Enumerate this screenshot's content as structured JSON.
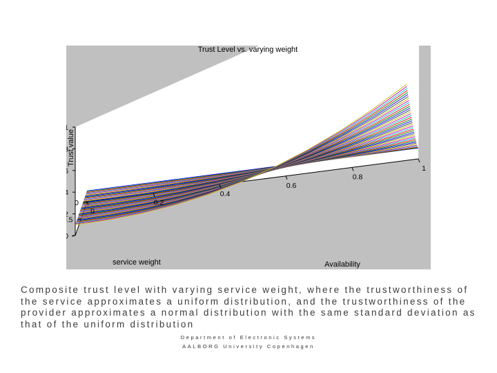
{
  "caption": "Composite trust level with varying service weight, where the trustworthiness of the service approximates a uniform distribution,  and the trustworthiness of the provider approximates a normal distribution with the same standard deviation as that of the uniform distribution",
  "footer": {
    "line1": "Department of Electronic Systems",
    "line2": "AALBORG University Copenhagen"
  },
  "colors": {
    "plot_background": "#c0c0c0",
    "floor": "#ffffff",
    "series_cycle": [
      "#0000ff",
      "#008000",
      "#ff0000",
      "#00bfbf",
      "#bf00bf",
      "#bfbf00",
      "#3f3f3f"
    ]
  },
  "chart_data": {
    "type": "surface-lines",
    "title": "Trust Level vs. varying weight",
    "xlabel": "Availability",
    "ylabel": "service weight",
    "zlabel": "Trust value",
    "xlim": [
      0,
      1
    ],
    "ylim": [
      0,
      1
    ],
    "zlim": [
      0,
      1
    ],
    "x_ticks": [
      "0",
      "0.2",
      "0.4",
      "0.6",
      "0.8",
      "1"
    ],
    "y_ticks": [
      "0",
      "0.5",
      "1"
    ],
    "z_ticks": [
      "0",
      "0.2",
      "0.4",
      "0.6",
      "0.8",
      "1"
    ],
    "grid": false,
    "series_count": 41,
    "x": [
      0.0,
      0.1,
      0.2,
      0.3,
      0.4,
      0.5,
      0.6,
      0.7,
      0.8,
      0.9,
      1.0
    ],
    "curve_family": {
      "varying": "service weight",
      "weight_at_first_line": 0,
      "weight_at_last_line": 1,
      "trust_at_availability_0": 0.1,
      "trust_at_availability_1_min": 0.1,
      "trust_at_availability_1_max": 1.0
    }
  }
}
